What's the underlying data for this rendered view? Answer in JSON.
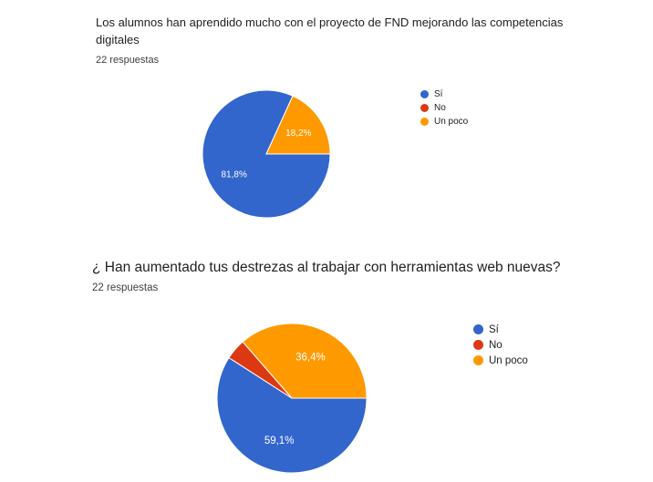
{
  "chart_data": [
    {
      "type": "pie",
      "title": "Los alumnos han aprendido mucho con el proyecto de FND mejorando las competencias digitales",
      "responses": "22 respuestas",
      "categories": [
        "Sí",
        "No",
        "Un poco"
      ],
      "values": [
        81.8,
        0,
        18.2
      ],
      "labels": [
        "81,8%",
        "",
        "18,2%"
      ],
      "colors": [
        "#3366cc",
        "#dc3912",
        "#ff9900"
      ],
      "legend_position": "right"
    },
    {
      "type": "pie",
      "title": "¿ Han aumentado tus destrezas al trabajar con herramientas web nuevas?",
      "responses": "22 respuestas",
      "categories": [
        "Sí",
        "No",
        "Un poco"
      ],
      "values": [
        59.1,
        4.5,
        36.4
      ],
      "labels": [
        "59,1%",
        "",
        "36,4%"
      ],
      "colors": [
        "#3366cc",
        "#dc3912",
        "#ff9900"
      ],
      "legend_position": "right"
    }
  ]
}
